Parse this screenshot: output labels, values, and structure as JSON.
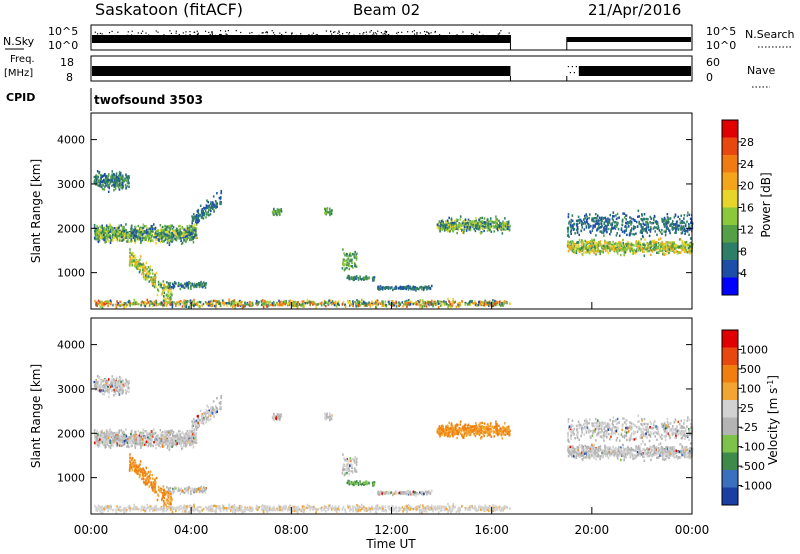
{
  "header": {
    "station": "Saskatoon (fitACF)",
    "beam": "Beam 02",
    "date": "21/Apr/2016"
  },
  "top_panels": {
    "nsky_label": "N.Sky",
    "nsky_ticks": [
      "10^5",
      "10^0"
    ],
    "nsearch_label": "N.Search",
    "nsearch_ticks": [
      "10^5",
      "10^0"
    ],
    "freq_label": "Freq.",
    "freq_unit": "[MHz]",
    "freq_ticks": [
      "18",
      "8"
    ],
    "nave_label": "Nave",
    "nave_ticks": [
      "60",
      "0"
    ],
    "cpid_label": "CPID",
    "cpid_value": "twofsound 3503"
  },
  "colors": {
    "power_scale": [
      "#0000ff",
      "#1d4fa8",
      "#2e7d66",
      "#55a046",
      "#8cc83c",
      "#e7d52a",
      "#f4a51c",
      "#f07b12",
      "#e84810",
      "#e00000"
    ],
    "velocity_scale": [
      "#1a3fa0",
      "#3b6fc0",
      "#3d8a4a",
      "#7dc24a",
      "#b4b4b4",
      "#d2d2d2",
      "#f2a532",
      "#f07f10",
      "#e84810",
      "#e00000"
    ]
  },
  "chart_data": [
    {
      "type": "heatmap",
      "title": "",
      "xlabel": "",
      "ylabel": "Slant Range [km]",
      "y_ticks": [
        "1000",
        "2000",
        "3000",
        "4000"
      ],
      "x_ticks": [
        "00:00",
        "04:00",
        "08:00",
        "12:00",
        "16:00",
        "20:00",
        "00:00"
      ],
      "xlim": [
        "00:00",
        "24:00"
      ],
      "ylim": [
        180,
        4600
      ],
      "colorbar_label": "Power [dB]",
      "colorbar_ticks": [
        "4",
        "8",
        "12",
        "16",
        "20",
        "24",
        "28"
      ],
      "colorbar_range": [
        0,
        32
      ],
      "data_gap": [
        "16:45",
        "19:00"
      ]
    },
    {
      "type": "heatmap",
      "title": "",
      "xlabel": "Time UT",
      "ylabel": "Slant Range [km]",
      "y_ticks": [
        "1000",
        "2000",
        "3000",
        "4000"
      ],
      "x_ticks": [
        "00:00",
        "04:00",
        "08:00",
        "12:00",
        "16:00",
        "20:00",
        "00:00"
      ],
      "xlim": [
        "00:00",
        "24:00"
      ],
      "ylim": [
        180,
        4600
      ],
      "colorbar_label": "Velocity [m s",
      "colorbar_label_sup": "-1",
      "colorbar_label_end": "]",
      "colorbar_ticks": [
        "1000",
        "500",
        "100",
        "25",
        "-25",
        "-100",
        "-500",
        "-1000"
      ],
      "data_gap": [
        "16:45",
        "19:00"
      ]
    }
  ]
}
